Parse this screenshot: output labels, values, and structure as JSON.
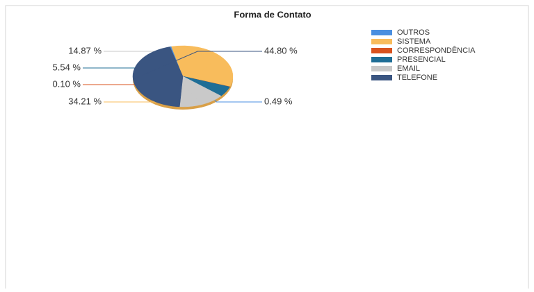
{
  "chart_data": {
    "type": "pie",
    "title": "Forma de Contato",
    "categories": [
      "OUTROS",
      "SISTEMA",
      "CORRESPONDÊNCIA",
      "PRESENCIAL",
      "EMAIL",
      "TELEFONE"
    ],
    "values": [
      0.49,
      34.21,
      0.1,
      5.54,
      14.87,
      44.8
    ],
    "value_labels": [
      "0.49 %",
      "34.21 %",
      "0.10 %",
      "5.54 %",
      "14.87 %",
      "44.80 %"
    ],
    "colors": [
      "#4a8fe0",
      "#f8bc5c",
      "#d9531e",
      "#1f6e96",
      "#c9c9c9",
      "#3a5581"
    ],
    "legend": "top-right"
  }
}
